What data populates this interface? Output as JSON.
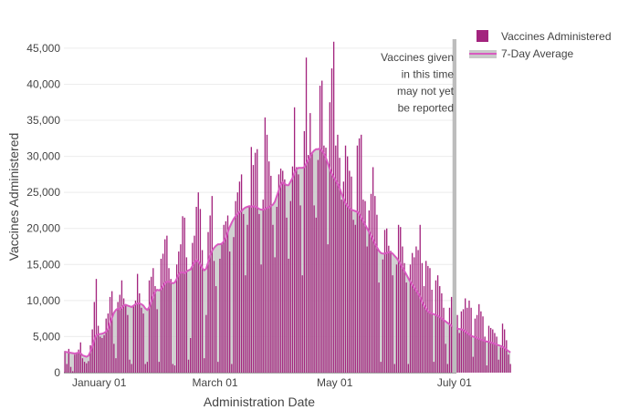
{
  "chart_data": {
    "type": "bar",
    "xlabel": "Administration Date",
    "ylabel": "Vaccines Administered",
    "ylim": [
      0,
      46000
    ],
    "y_ticks": [
      0,
      5000,
      10000,
      15000,
      20000,
      25000,
      30000,
      35000,
      40000,
      45000
    ],
    "y_tick_labels": [
      "0",
      "5,000",
      "10,000",
      "15,000",
      "20,000",
      "25,000",
      "30,000",
      "35,000",
      "40,000",
      "45,000"
    ],
    "x_ticks": [
      "2021-01-01",
      "2021-03-01",
      "2021-05-01",
      "2021-07-01"
    ],
    "x_tick_labels": [
      "January 01",
      "March 01",
      "May 01",
      "July 01"
    ],
    "x_range": [
      "2020-12-14",
      "2021-07-02"
    ],
    "grid": true,
    "legend_position": "top-right",
    "annotation": "Vaccines given\nin this time\nmay not yet\nbe reported",
    "unreported_period": [
      "2021-06-30",
      "2021-07-02"
    ],
    "colors": {
      "bar": "#a3247e",
      "average_line": "#d85bc0",
      "average_fill": "#c9c9c9",
      "unreported_band": "#bdbdbd",
      "grid": "#ececec"
    },
    "series": [
      {
        "name": "Vaccines Administered",
        "kind": "bar"
      },
      {
        "name": "7-Day Average",
        "kind": "line"
      }
    ],
    "bar_values": [
      3000,
      1200,
      3300,
      800,
      200,
      2500,
      2800,
      3200,
      4200,
      2000,
      1500,
      1300,
      1600,
      3800,
      6000,
      9800,
      13000,
      6500,
      5000,
      4800,
      5200,
      7500,
      8200,
      10500,
      11300,
      4000,
      2000,
      9800,
      10800,
      12800,
      10300,
      9500,
      8000,
      1800,
      1200,
      9200,
      10000,
      13700,
      11000,
      9000,
      8200,
      1200,
      1500,
      12800,
      13300,
      14500,
      12000,
      8800,
      1500,
      15800,
      16500,
      18500,
      19000,
      14500,
      13000,
      1200,
      1000,
      15000,
      16800,
      17800,
      21700,
      21500,
      16000,
      1800,
      4800,
      18000,
      19000,
      23000,
      25000,
      22700,
      17000,
      2000,
      8000,
      19500,
      21800,
      24500,
      15500,
      12000,
      1500,
      15800,
      17800,
      20500,
      21000,
      21800,
      16800,
      1200,
      18800,
      23800,
      25000,
      26500,
      27500,
      22000,
      13500,
      20500,
      23000,
      31300,
      28800,
      30500,
      31000,
      22000,
      15000,
      24000,
      35400,
      33000,
      29300,
      27300,
      20500,
      16000,
      23000,
      27500,
      28300,
      28000,
      26800,
      21500,
      15800,
      23800,
      28600,
      36800,
      28500,
      27500,
      23200,
      13500,
      33500,
      43700,
      30200,
      36000,
      30500,
      23200,
      21500,
      29500,
      39800,
      40500,
      31500,
      31200,
      17800,
      37500,
      42200,
      45900,
      31500,
      33000,
      29800,
      24000,
      26500,
      31500,
      30000,
      28000,
      27200,
      21200,
      20500,
      31500,
      32500,
      33000,
      24000,
      23800,
      17500,
      22500,
      24800,
      28500,
      24500,
      21900,
      12500,
      1500,
      15700,
      19800,
      20000,
      17600,
      16900,
      13500,
      1200,
      15000,
      20500,
      20200,
      17500,
      15200,
      12500,
      1200,
      15000,
      16600,
      16000,
      17500,
      17000,
      20500,
      15200,
      12000,
      15500,
      14800,
      14500,
      11500,
      1500,
      12800,
      13500,
      12000,
      11000,
      9000,
      4000,
      1200,
      9000,
      10500,
      9800,
      10500,
      8000,
      5500,
      8500,
      8800,
      10300,
      9000,
      10000,
      9000,
      2200,
      7500,
      8000,
      9500,
      8500,
      7800,
      5000,
      1000,
      6500,
      6200,
      6000,
      5500,
      5000,
      1800,
      3500,
      6800,
      6000,
      4500,
      2500,
      1200
    ],
    "average_values": [
      2900,
      2850,
      2800,
      2750,
      2700,
      2650,
      2700,
      2800,
      2700,
      2400,
      2300,
      2200,
      2350,
      2900,
      3700,
      4600,
      5200,
      5300,
      5350,
      5400,
      5500,
      5700,
      6100,
      6900,
      7600,
      8300,
      8700,
      8900,
      8800,
      9000,
      9300,
      9400,
      9300,
      9200,
      9100,
      9300,
      9500,
      9600,
      9600,
      9500,
      9300,
      8900,
      8700,
      9100,
      9800,
      10600,
      11200,
      11500,
      11400,
      11600,
      12000,
      12400,
      12600,
      12600,
      12500,
      12400,
      12500,
      13000,
      13600,
      13900,
      13900,
      13800,
      14000,
      14200,
      14300,
      14800,
      15300,
      15600,
      15400,
      15000,
      14500,
      14200,
      14400,
      15300,
      16300,
      16900,
      17300,
      17600,
      17800,
      17800,
      17900,
      18200,
      18700,
      19500,
      20200,
      20800,
      21300,
      21700,
      22000,
      22300,
      22400,
      22700,
      22900,
      23000,
      23100,
      23000,
      23100,
      23000,
      22900,
      22700,
      22600,
      22600,
      22700,
      22900,
      22900,
      23100,
      23300,
      23700,
      24500,
      25300,
      26000,
      26400,
      26200,
      26000,
      26000,
      26500,
      27000,
      27700,
      28200,
      28400,
      28400,
      28400,
      28500,
      29000,
      29500,
      30000,
      30500,
      30800,
      31000,
      31000,
      31100,
      30800,
      30400,
      29800,
      29000,
      28200,
      27600,
      27100,
      26700,
      26200,
      25600,
      24800,
      24100,
      23500,
      23100,
      22800,
      22600,
      22500,
      22400,
      22300,
      22000,
      21500,
      21000,
      20500,
      20000,
      19500,
      19000,
      18500,
      17900,
      17400,
      16900,
      16600,
      16500,
      16500,
      16600,
      16700,
      16700,
      16500,
      16200,
      15900,
      15500,
      15100,
      14600,
      14100,
      13600,
      13100,
      12600,
      12200,
      11800,
      11400,
      11000,
      10500,
      9800,
      9300,
      8900,
      8500,
      8300,
      8200,
      8100,
      8000,
      7900,
      7700,
      7500,
      7300,
      7100,
      6900,
      6700,
      6500,
      6300,
      6200,
      6100,
      6050,
      6000,
      5900,
      5700,
      5500,
      5300,
      5100,
      5000,
      4900,
      4800,
      4700,
      4600,
      4500,
      4400,
      4300,
      4300,
      4200,
      4100,
      4000,
      3900,
      3800,
      3700,
      3600,
      3400,
      3200,
      3000,
      2800
    ]
  }
}
